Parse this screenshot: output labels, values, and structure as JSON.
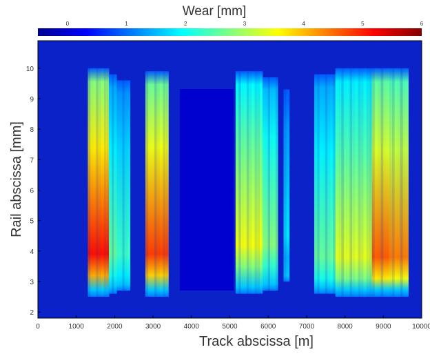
{
  "chart_data": {
    "type": "heatmap",
    "title": "",
    "colorbar_label": "Wear [mm]",
    "xlabel": "Track abscissa [m]",
    "ylabel": "Rail abscissa [mm]",
    "xlim": [
      0,
      10000
    ],
    "ylim": [
      1.8,
      10.9
    ],
    "x_ticks": [
      "0",
      "1000",
      "2000",
      "3000",
      "4000",
      "5000",
      "6000",
      "7000",
      "8000",
      "9000",
      "10000"
    ],
    "y_ticks": [
      "2",
      "3",
      "4",
      "5",
      "6",
      "7",
      "8",
      "9",
      "10"
    ],
    "colorbar_ticks": [
      "0",
      "1",
      "2",
      "3",
      "4",
      "5",
      "6"
    ],
    "colorbar_range": [
      -0.5,
      6
    ],
    "colormap": "jet",
    "background_wear": 0.3,
    "wear_bands": [
      {
        "x_start": 1300,
        "x_end": 1850,
        "y_start": 2.5,
        "y_end": 10.0,
        "peak_wear": 5.1,
        "peak_y": 3.9
      },
      {
        "x_start": 1850,
        "x_end": 2050,
        "y_start": 2.6,
        "y_end": 9.8,
        "peak_wear": 2.6,
        "peak_y": 3.9
      },
      {
        "x_start": 2050,
        "x_end": 2400,
        "y_start": 2.7,
        "y_end": 9.6,
        "peak_wear": 2.3,
        "peak_y": 3.9
      },
      {
        "x_start": 2800,
        "x_end": 3400,
        "y_start": 2.5,
        "y_end": 9.9,
        "peak_wear": 4.8,
        "peak_y": 3.9
      },
      {
        "x_start": 5150,
        "x_end": 5850,
        "y_start": 2.6,
        "y_end": 9.9,
        "peak_wear": 3.5,
        "peak_y": 4.2
      },
      {
        "x_start": 5850,
        "x_end": 6250,
        "y_start": 2.7,
        "y_end": 9.7,
        "peak_wear": 2.8,
        "peak_y": 4.2
      },
      {
        "x_start": 6400,
        "x_end": 6550,
        "y_start": 3.0,
        "y_end": 9.3,
        "peak_wear": 1.8,
        "peak_y": 4.5
      },
      {
        "x_start": 7200,
        "x_end": 7750,
        "y_start": 2.6,
        "y_end": 9.8,
        "peak_wear": 2.6,
        "peak_y": 3.8
      },
      {
        "x_start": 7750,
        "x_end": 8700,
        "y_start": 2.5,
        "y_end": 10.0,
        "peak_wear": 3.4,
        "peak_y": 3.8
      },
      {
        "x_start": 8700,
        "x_end": 9150,
        "y_start": 2.5,
        "y_end": 10.0,
        "peak_wear": 4.6,
        "peak_y": 3.8
      },
      {
        "x_start": 9150,
        "x_end": 9650,
        "y_start": 2.5,
        "y_end": 10.0,
        "peak_wear": 4.4,
        "peak_y": 3.8
      }
    ],
    "low_wear_zone": {
      "x_start": 3700,
      "x_end": 5100,
      "wear": 0.0
    },
    "grid": false
  }
}
